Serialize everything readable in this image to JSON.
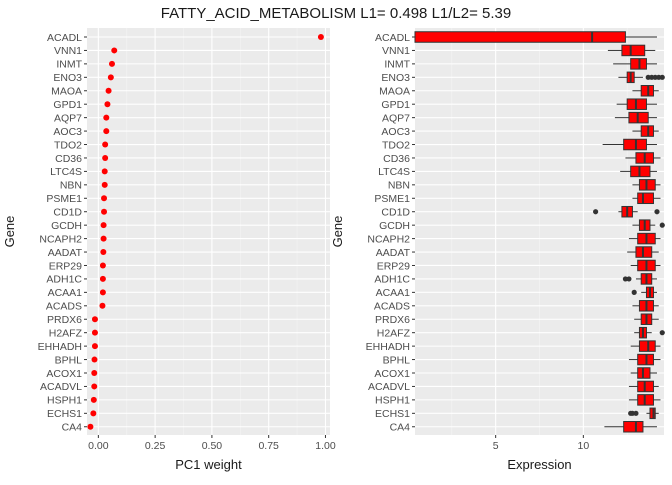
{
  "title": "FATTY_ACID_METABOLISM L1= 0.498 L1/L2= 5.39",
  "colors": {
    "panel": "#ebebeb",
    "grid_major": "#ffffff",
    "grid_minor": "#f5f5f5",
    "mark": "#ff0000",
    "outline": "#333333",
    "text": "#4d4d4d"
  },
  "chart_data": [
    {
      "type": "scatter",
      "xlabel": "PC1 weight",
      "ylabel": "Gene",
      "xlim": [
        -0.05,
        1.02
      ],
      "xticks": [
        0.0,
        0.25,
        0.5,
        0.75,
        1.0
      ],
      "xtick_labels": [
        "0.00",
        "0.25",
        "0.50",
        "0.75",
        "1.00"
      ],
      "genes": [
        "ACADL",
        "VNN1",
        "INMT",
        "ENO3",
        "MAOA",
        "GPD1",
        "AQP7",
        "AOC3",
        "TDO2",
        "CD36",
        "LTC4S",
        "NBN",
        "PSME1",
        "CD1D",
        "GCDH",
        "NCAPH2",
        "AADAT",
        "ERP29",
        "ADH1C",
        "ACAA1",
        "ACADS",
        "PRDX6",
        "H2AFZ",
        "EHHADH",
        "BPHL",
        "ACOX1",
        "ACADVL",
        "HSPH1",
        "ECHS1",
        "CA4"
      ],
      "values": [
        0.98,
        0.07,
        0.06,
        0.055,
        0.045,
        0.04,
        0.035,
        0.035,
        0.03,
        0.03,
        0.028,
        0.028,
        0.025,
        0.025,
        0.023,
        0.023,
        0.022,
        0.02,
        0.02,
        0.02,
        0.018,
        -0.015,
        -0.015,
        -0.015,
        -0.017,
        -0.018,
        -0.018,
        -0.02,
        -0.022,
        -0.035
      ]
    },
    {
      "type": "boxplot",
      "xlabel": "Expression",
      "ylabel": "Gene",
      "xlim": [
        0.4,
        14.6
      ],
      "xticks": [
        5,
        10
      ],
      "xtick_labels": [
        "5",
        "10"
      ],
      "genes": [
        "ACADL",
        "VNN1",
        "INMT",
        "ENO3",
        "MAOA",
        "GPD1",
        "AQP7",
        "AOC3",
        "TDO2",
        "CD36",
        "LTC4S",
        "NBN",
        "PSME1",
        "CD1D",
        "GCDH",
        "NCAPH2",
        "AADAT",
        "ERP29",
        "ADH1C",
        "ACAA1",
        "ACADS",
        "PRDX6",
        "H2AFZ",
        "EHHADH",
        "BPHL",
        "ACOX1",
        "ACADVL",
        "HSPH1",
        "ECHS1",
        "CA4"
      ],
      "boxes": [
        {
          "min": 0.4,
          "q1": 0.4,
          "median": 10.5,
          "q3": 12.4,
          "max": 14.2,
          "outliers": []
        },
        {
          "min": 11.4,
          "q1": 12.2,
          "median": 12.7,
          "q3": 13.5,
          "max": 14.1,
          "outliers": []
        },
        {
          "min": 11.7,
          "q1": 12.7,
          "median": 13.2,
          "q3": 13.6,
          "max": 14.2,
          "outliers": []
        },
        {
          "min": 12.0,
          "q1": 12.5,
          "median": 12.7,
          "q3": 12.9,
          "max": 13.4,
          "outliers": [
            13.7,
            13.9,
            14.1,
            14.3,
            14.5
          ]
        },
        {
          "min": 12.8,
          "q1": 13.3,
          "median": 13.7,
          "q3": 14.0,
          "max": 14.3,
          "outliers": []
        },
        {
          "min": 11.9,
          "q1": 12.5,
          "median": 13.0,
          "q3": 13.6,
          "max": 14.2,
          "outliers": []
        },
        {
          "min": 11.8,
          "q1": 12.6,
          "median": 13.1,
          "q3": 13.7,
          "max": 14.2,
          "outliers": []
        },
        {
          "min": 12.8,
          "q1": 13.3,
          "median": 13.7,
          "q3": 14.0,
          "max": 14.3,
          "outliers": []
        },
        {
          "min": 11.1,
          "q1": 12.3,
          "median": 13.0,
          "q3": 13.6,
          "max": 14.2,
          "outliers": []
        },
        {
          "min": 12.4,
          "q1": 13.0,
          "median": 13.5,
          "q3": 14.0,
          "max": 14.4,
          "outliers": []
        },
        {
          "min": 12.1,
          "q1": 12.7,
          "median": 13.2,
          "q3": 13.8,
          "max": 14.2,
          "outliers": []
        },
        {
          "min": 12.8,
          "q1": 13.2,
          "median": 13.6,
          "q3": 14.1,
          "max": 14.4,
          "outliers": []
        },
        {
          "min": 12.8,
          "q1": 13.1,
          "median": 13.4,
          "q3": 14.0,
          "max": 14.4,
          "outliers": []
        },
        {
          "min": 12.0,
          "q1": 12.2,
          "median": 12.5,
          "q3": 12.8,
          "max": 13.1,
          "outliers": [
            10.7,
            14.2
          ]
        },
        {
          "min": 12.8,
          "q1": 13.2,
          "median": 13.5,
          "q3": 13.8,
          "max": 14.1,
          "outliers": [
            14.5
          ]
        },
        {
          "min": 12.6,
          "q1": 13.1,
          "median": 13.6,
          "q3": 14.1,
          "max": 14.4,
          "outliers": []
        },
        {
          "min": 12.5,
          "q1": 13.0,
          "median": 13.4,
          "q3": 13.9,
          "max": 14.3,
          "outliers": []
        },
        {
          "min": 12.7,
          "q1": 13.1,
          "median": 13.6,
          "q3": 14.1,
          "max": 14.4,
          "outliers": []
        },
        {
          "min": 13.0,
          "q1": 13.3,
          "median": 13.6,
          "q3": 13.9,
          "max": 14.2,
          "outliers": [
            12.4,
            12.6
          ]
        },
        {
          "min": 13.3,
          "q1": 13.6,
          "median": 13.8,
          "q3": 14.0,
          "max": 14.2,
          "outliers": [
            12.9
          ]
        },
        {
          "min": 12.8,
          "q1": 13.2,
          "median": 13.6,
          "q3": 14.0,
          "max": 14.3,
          "outliers": []
        },
        {
          "min": 12.9,
          "q1": 13.3,
          "median": 13.6,
          "q3": 13.9,
          "max": 14.3,
          "outliers": []
        },
        {
          "min": 12.9,
          "q1": 13.2,
          "median": 13.4,
          "q3": 13.6,
          "max": 13.9,
          "outliers": [
            14.5
          ]
        },
        {
          "min": 12.7,
          "q1": 13.2,
          "median": 13.7,
          "q3": 14.1,
          "max": 14.4,
          "outliers": []
        },
        {
          "min": 12.6,
          "q1": 13.1,
          "median": 13.6,
          "q3": 14.0,
          "max": 14.4,
          "outliers": []
        },
        {
          "min": 12.7,
          "q1": 13.1,
          "median": 13.4,
          "q3": 13.8,
          "max": 14.2,
          "outliers": []
        },
        {
          "min": 12.6,
          "q1": 13.1,
          "median": 13.5,
          "q3": 14.0,
          "max": 14.3,
          "outliers": []
        },
        {
          "min": 12.6,
          "q1": 13.1,
          "median": 13.5,
          "q3": 14.0,
          "max": 14.4,
          "outliers": []
        },
        {
          "min": 13.6,
          "q1": 13.8,
          "median": 14.0,
          "q3": 14.1,
          "max": 14.3,
          "outliers": [
            12.7,
            12.8,
            13.0
          ]
        },
        {
          "min": 11.2,
          "q1": 12.3,
          "median": 13.0,
          "q3": 13.4,
          "max": 14.2,
          "outliers": []
        }
      ]
    }
  ]
}
